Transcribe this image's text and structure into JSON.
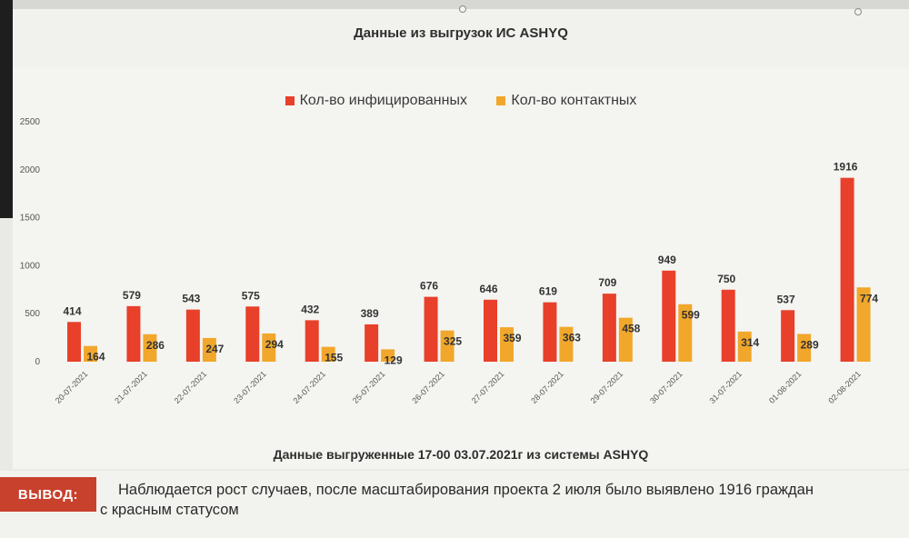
{
  "chart": {
    "title": "Данные из выгрузок ИС ASHYQ",
    "footer_note": "Данные выгруженные 17-00 03.07.2021г из системы ASHYQ"
  },
  "conclusion": {
    "label": "ВЫВОД:",
    "line1": "Наблюдается рост случаев, после масштабирования проекта 2 июля было выявлено 1916 граждан",
    "line2": "с красным статусом"
  },
  "colors": {
    "infected": "#e8402a",
    "contacts": "#f1a72b"
  },
  "chart_data": {
    "type": "bar",
    "title": "Данные из выгрузок ИС ASHYQ",
    "xlabel": "",
    "ylabel": "",
    "ylim": [
      0,
      2500
    ],
    "yticks": [
      0,
      500,
      1000,
      1500,
      2000,
      2500
    ],
    "grid": false,
    "legend_position": "top-center",
    "categories": [
      "20-07-2021",
      "21-07-2021",
      "22-07-2021",
      "23-07-2021",
      "24-07-2021",
      "25-07-2021",
      "26-07-2021",
      "27-07-2021",
      "28-07-2021",
      "29-07-2021",
      "30-07-2021",
      "31-07-2021",
      "01-08-2021",
      "02-08-2021"
    ],
    "series": [
      {
        "name": "Кол-во инфицированных",
        "values": [
          414,
          579,
          543,
          575,
          432,
          389,
          676,
          646,
          619,
          709,
          949,
          750,
          537,
          1916
        ]
      },
      {
        "name": "Кол-во контактных",
        "values": [
          164,
          286,
          247,
          294,
          155,
          129,
          325,
          359,
          363,
          458,
          599,
          314,
          289,
          774
        ]
      }
    ]
  }
}
